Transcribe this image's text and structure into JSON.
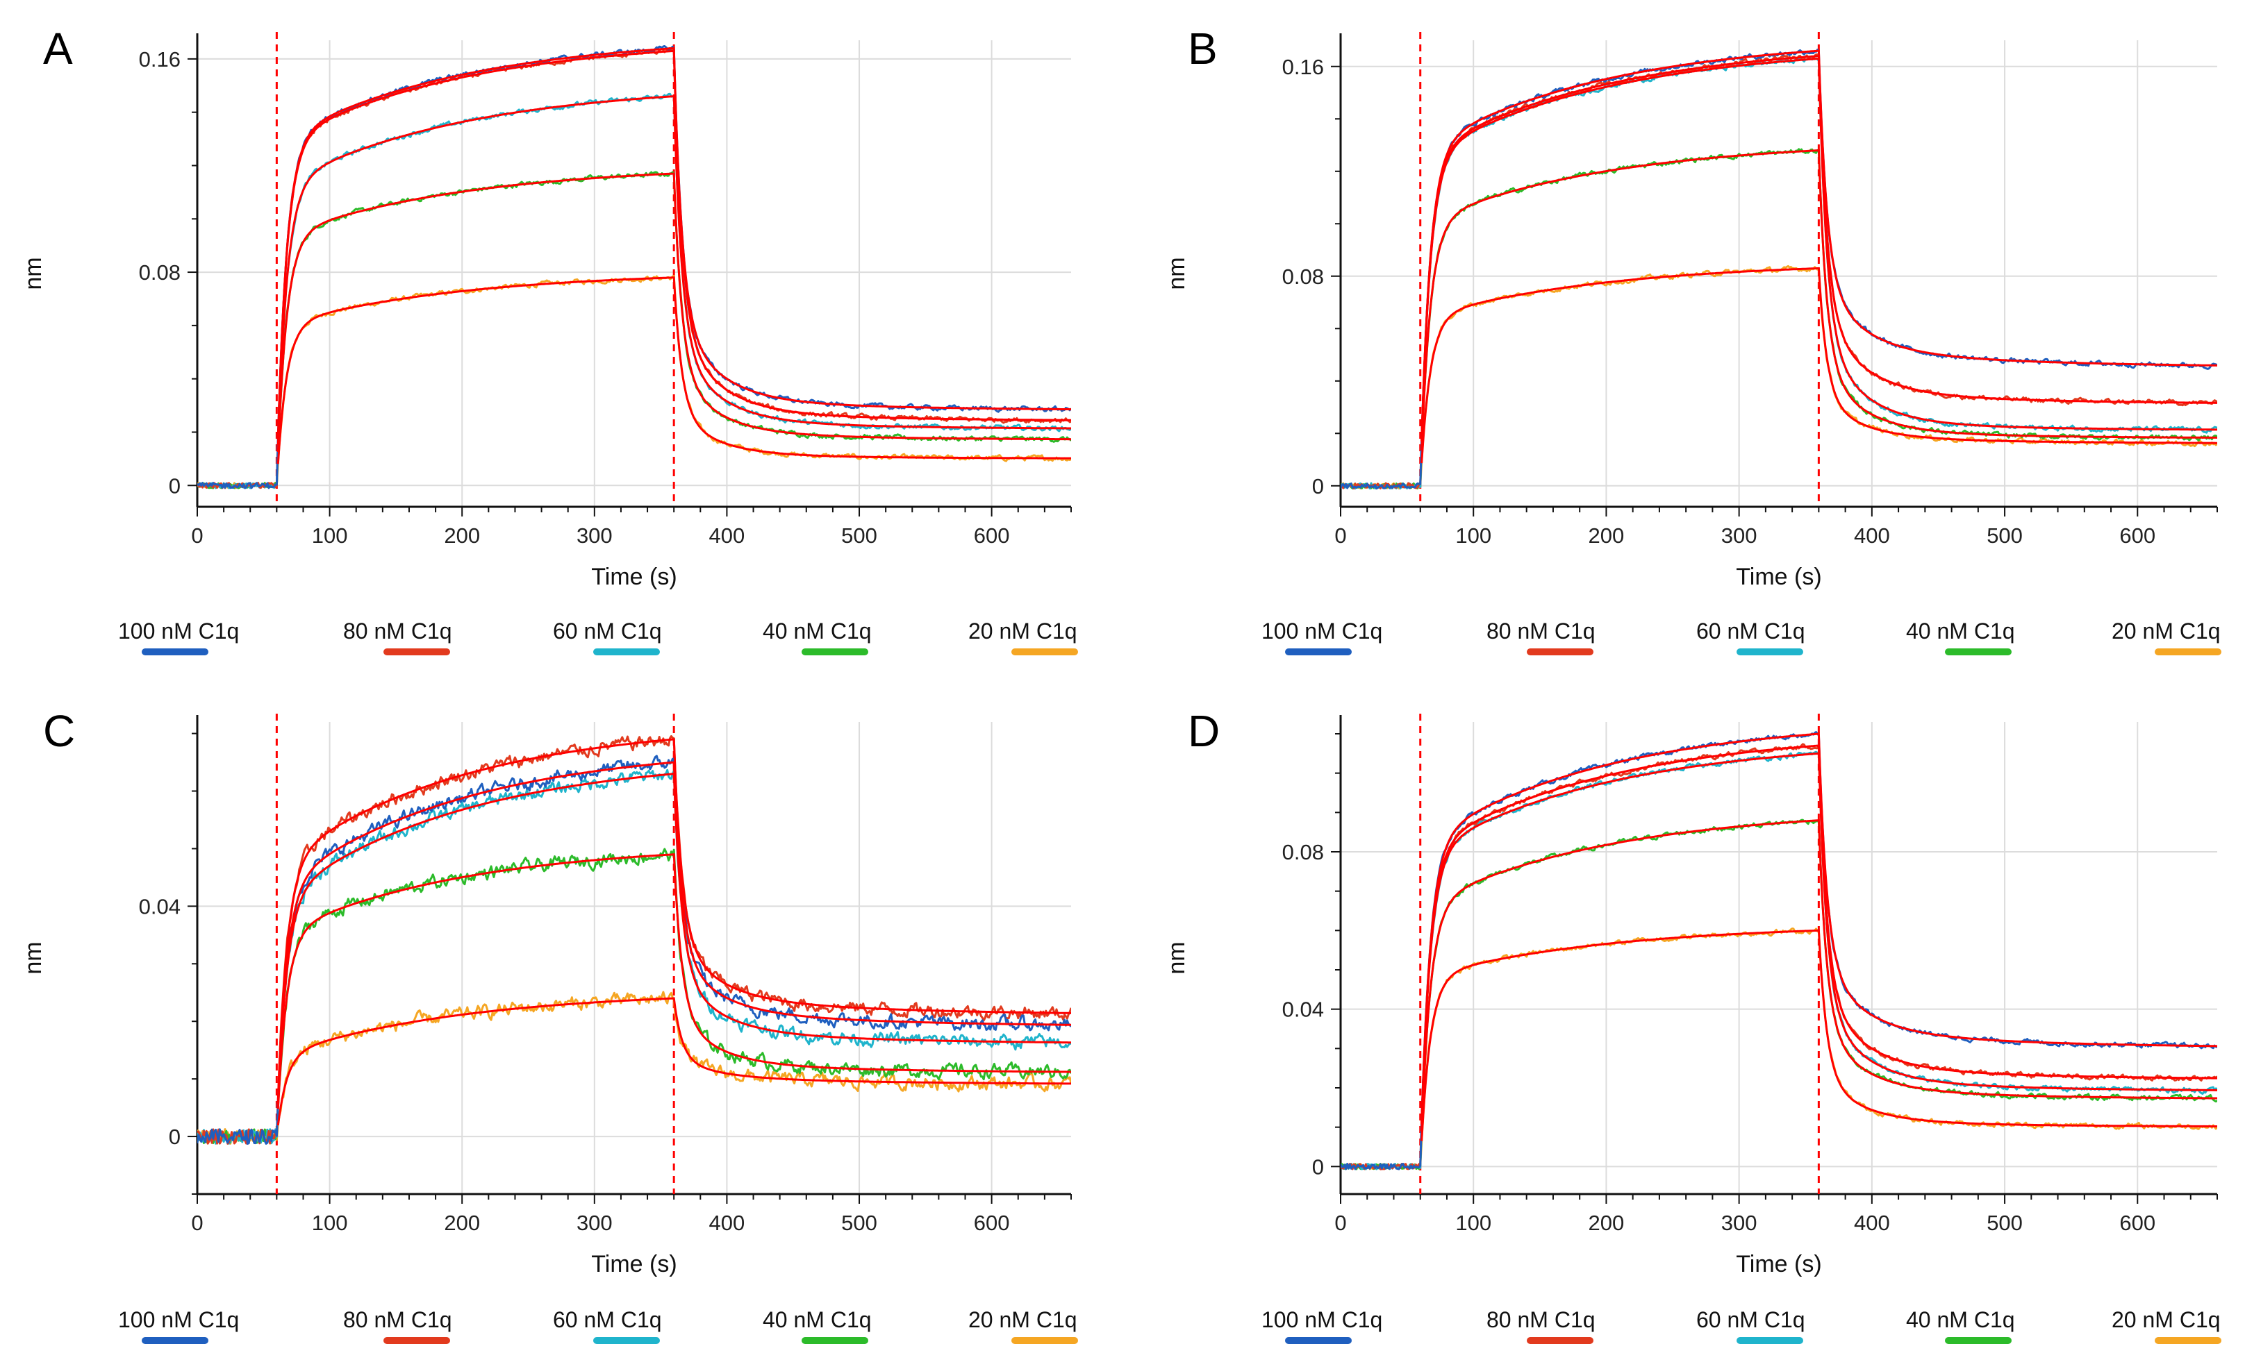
{
  "figure": {
    "legend_entries": [
      {
        "label": "100 nM C1q",
        "color": "#1f5fbf"
      },
      {
        "label": "80 nM C1q",
        "color": "#e23a1e"
      },
      {
        "label": "60 nM C1q",
        "color": "#1fb4cc"
      },
      {
        "label": "40 nM C1q",
        "color": "#2cbb2a"
      },
      {
        "label": "20 nM C1q",
        "color": "#f5a623"
      }
    ],
    "fit_color": "#ff0000",
    "marker_line_color": "#ff0000"
  },
  "chart_data": [
    {
      "panel": "A",
      "type": "line",
      "xlabel": "Time (s)",
      "ylabel": "nm",
      "xlim": [
        0,
        660
      ],
      "ylim": [
        -0.008,
        0.167
      ],
      "xticks": [
        0,
        100,
        200,
        300,
        400,
        500,
        600
      ],
      "yticks": [
        0,
        0.08,
        0.16
      ],
      "ytick_labels": [
        "0",
        "0.08",
        "0.16"
      ],
      "association_start": 60,
      "dissociation_start": 360,
      "series": [
        {
          "name": "100 nM C1q",
          "values": {
            "a_fast": 0.129,
            "a_end": 0.164,
            "d_end": 0.028
          }
        },
        {
          "name": "80 nM C1q",
          "values": {
            "a_fast": 0.128,
            "a_end": 0.163,
            "d_end": 0.024
          }
        },
        {
          "name": "60 nM C1q",
          "values": {
            "a_fast": 0.112,
            "a_end": 0.146,
            "d_end": 0.021
          }
        },
        {
          "name": "40 nM C1q",
          "values": {
            "a_fast": 0.093,
            "a_end": 0.117,
            "d_end": 0.017
          }
        },
        {
          "name": "20 nM C1q",
          "values": {
            "a_fast": 0.06,
            "a_end": 0.078,
            "d_end": 0.01
          }
        }
      ]
    },
    {
      "panel": "B",
      "type": "line",
      "xlabel": "Time (s)",
      "ylabel": "nm",
      "xlim": [
        0,
        660
      ],
      "ylim": [
        -0.008,
        0.17
      ],
      "xticks": [
        0,
        100,
        200,
        300,
        400,
        500,
        600
      ],
      "yticks": [
        0,
        0.08,
        0.16
      ],
      "ytick_labels": [
        "0",
        "0.08",
        "0.16"
      ],
      "association_start": 60,
      "dissociation_start": 360,
      "series": [
        {
          "name": "100 nM C1q",
          "values": {
            "a_fast": 0.128,
            "a_end": 0.166,
            "d_end": 0.045
          }
        },
        {
          "name": "80 nM C1q",
          "values": {
            "a_fast": 0.126,
            "a_end": 0.164,
            "d_end": 0.031
          }
        },
        {
          "name": "60 nM C1q",
          "values": {
            "a_fast": 0.125,
            "a_end": 0.163,
            "d_end": 0.021
          }
        },
        {
          "name": "40 nM C1q",
          "values": {
            "a_fast": 0.1,
            "a_end": 0.128,
            "d_end": 0.018
          }
        },
        {
          "name": "20 nM C1q",
          "values": {
            "a_fast": 0.064,
            "a_end": 0.083,
            "d_end": 0.016
          }
        }
      ]
    },
    {
      "panel": "C",
      "type": "line",
      "xlabel": "Time (s)",
      "ylabel": "nm",
      "xlim": [
        0,
        660
      ],
      "ylim": [
        -0.01,
        0.072
      ],
      "xticks": [
        0,
        100,
        200,
        300,
        400,
        500,
        600
      ],
      "yticks": [
        0,
        0.04
      ],
      "ytick_labels": [
        "0",
        "0.04"
      ],
      "association_start": 60,
      "dissociation_start": 360,
      "series": [
        {
          "name": "100 nM C1q",
          "values": {
            "a_fast": 0.043,
            "a_end": 0.065,
            "d_end": 0.019
          }
        },
        {
          "name": "80 nM C1q",
          "values": {
            "a_fast": 0.047,
            "a_end": 0.069,
            "d_end": 0.021
          }
        },
        {
          "name": "60 nM C1q",
          "values": {
            "a_fast": 0.041,
            "a_end": 0.063,
            "d_end": 0.016
          }
        },
        {
          "name": "40 nM C1q",
          "values": {
            "a_fast": 0.035,
            "a_end": 0.049,
            "d_end": 0.011
          }
        },
        {
          "name": "20 nM C1q",
          "values": {
            "a_fast": 0.014,
            "a_end": 0.024,
            "d_end": 0.009
          }
        }
      ]
    },
    {
      "panel": "D",
      "type": "line",
      "xlabel": "Time (s)",
      "ylabel": "nm",
      "xlim": [
        0,
        660
      ],
      "ylim": [
        -0.007,
        0.113
      ],
      "xticks": [
        0,
        100,
        200,
        300,
        400,
        500,
        600
      ],
      "yticks": [
        0,
        0.04,
        0.08
      ],
      "ytick_labels": [
        "0",
        "0.04",
        "0.08"
      ],
      "association_start": 60,
      "dissociation_start": 360,
      "series": [
        {
          "name": "100 nM C1q",
          "values": {
            "a_fast": 0.082,
            "a_end": 0.11,
            "d_end": 0.03
          }
        },
        {
          "name": "80 nM C1q",
          "values": {
            "a_fast": 0.08,
            "a_end": 0.107,
            "d_end": 0.022
          }
        },
        {
          "name": "60 nM C1q",
          "values": {
            "a_fast": 0.079,
            "a_end": 0.105,
            "d_end": 0.019
          }
        },
        {
          "name": "40 nM C1q",
          "values": {
            "a_fast": 0.066,
            "a_end": 0.088,
            "d_end": 0.017
          }
        },
        {
          "name": "20 nM C1q",
          "values": {
            "a_fast": 0.048,
            "a_end": 0.06,
            "d_end": 0.01
          }
        }
      ]
    }
  ]
}
